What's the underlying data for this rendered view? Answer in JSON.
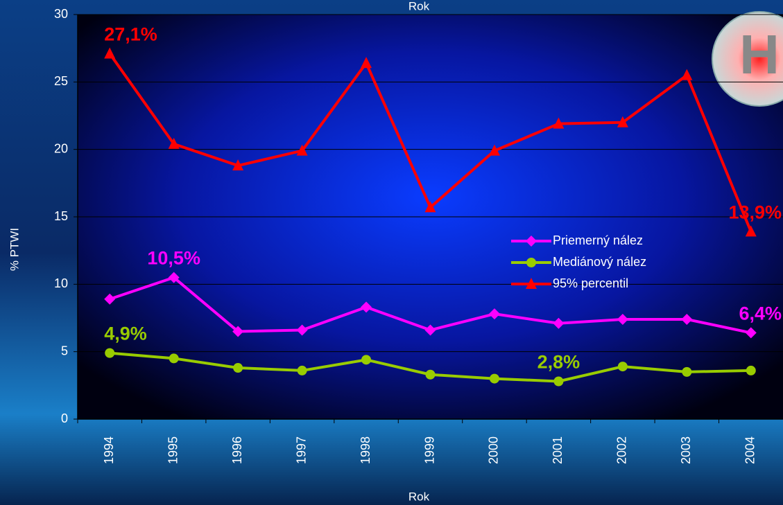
{
  "chart_data": {
    "type": "line",
    "top_label": "Rok",
    "x_label": "Rok",
    "y_label": "% PTWI",
    "logo_text": "H",
    "categories": [
      "1994",
      "1995",
      "1996",
      "1997",
      "1998",
      "1999",
      "2000",
      "2001",
      "2002",
      "2003",
      "2004"
    ],
    "ylim": [
      0,
      30
    ],
    "yticks": [
      0,
      5,
      10,
      15,
      20,
      25,
      30
    ],
    "grid": true,
    "series": [
      {
        "name": "Priemerný nález",
        "color": "#ff00ff",
        "marker": "diamond",
        "values": [
          8.9,
          10.5,
          6.5,
          6.6,
          8.3,
          6.6,
          7.8,
          7.1,
          7.4,
          7.4,
          6.4
        ],
        "value_labels": [
          null,
          "10,5%",
          null,
          null,
          null,
          null,
          null,
          null,
          null,
          null,
          "6,4%"
        ]
      },
      {
        "name": "Mediánový nález",
        "color": "#99cc00",
        "marker": "circle",
        "values": [
          4.9,
          4.5,
          3.8,
          3.6,
          4.4,
          3.3,
          3.0,
          2.8,
          3.9,
          3.5,
          3.6
        ],
        "value_labels": [
          "4,9%",
          null,
          null,
          null,
          null,
          null,
          null,
          "2,8%",
          null,
          null,
          null
        ]
      },
      {
        "name": "95% percentil",
        "color": "#ff0000",
        "marker": "triangle",
        "values": [
          27.1,
          20.4,
          18.8,
          19.9,
          26.4,
          15.7,
          19.9,
          21.9,
          22.0,
          25.5,
          13.9
        ],
        "value_labels": [
          "27,1%",
          null,
          null,
          null,
          null,
          null,
          null,
          null,
          null,
          null,
          "13,9%"
        ]
      }
    ]
  }
}
